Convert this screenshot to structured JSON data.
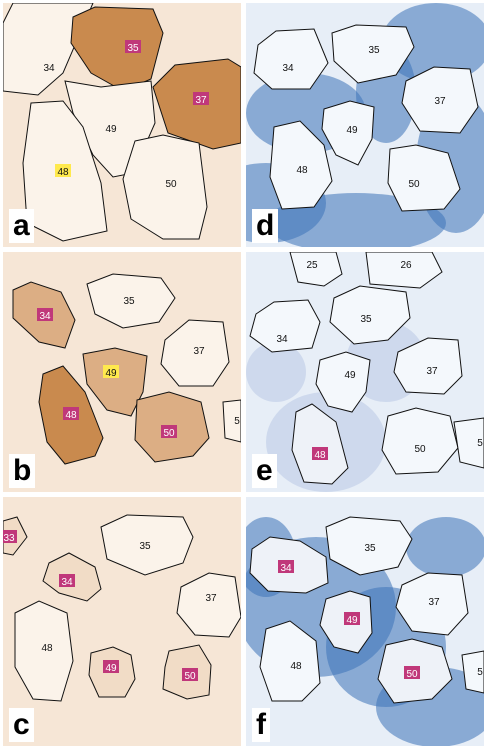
{
  "figure": {
    "colors": {
      "brown_dark": "#c98a4e",
      "brown_mid": "#dcae84",
      "brown_light": "#f1dcc6",
      "cell_pale": "#fbf3ea",
      "blue_dark": "#3c73b8",
      "blue_light": "#d9e6f3",
      "label_magenta": "#c0387a",
      "label_yellow": "#ffe94d"
    },
    "panels": [
      {
        "letter": "a",
        "stain": "brown",
        "cells": [
          {
            "label": "34",
            "tag": "plain",
            "fill": "pale"
          },
          {
            "label": "35",
            "tag": "magenta",
            "fill": "dark"
          },
          {
            "label": "37",
            "tag": "magenta",
            "fill": "dark"
          },
          {
            "label": "49",
            "tag": "plain",
            "fill": "pale"
          },
          {
            "label": "48",
            "tag": "yellow",
            "fill": "pale"
          },
          {
            "label": "50",
            "tag": "plain",
            "fill": "pale"
          }
        ]
      },
      {
        "letter": "b",
        "stain": "brown",
        "cells": [
          {
            "label": "34",
            "tag": "magenta",
            "fill": "mid"
          },
          {
            "label": "35",
            "tag": "plain",
            "fill": "pale"
          },
          {
            "label": "37",
            "tag": "plain",
            "fill": "pale"
          },
          {
            "label": "49",
            "tag": "yellow",
            "fill": "mid"
          },
          {
            "label": "48",
            "tag": "magenta",
            "fill": "dark"
          },
          {
            "label": "50",
            "tag": "magenta",
            "fill": "mid"
          },
          {
            "label": "5",
            "tag": "plain",
            "fill": "pale"
          }
        ]
      },
      {
        "letter": "c",
        "stain": "brown",
        "cells": [
          {
            "label": "33",
            "tag": "magenta",
            "fill": "light"
          },
          {
            "label": "34",
            "tag": "magenta",
            "fill": "light"
          },
          {
            "label": "35",
            "tag": "plain",
            "fill": "pale"
          },
          {
            "label": "37",
            "tag": "plain",
            "fill": "pale"
          },
          {
            "label": "48",
            "tag": "plain",
            "fill": "pale"
          },
          {
            "label": "49",
            "tag": "magenta",
            "fill": "light"
          },
          {
            "label": "50",
            "tag": "magenta",
            "fill": "light"
          }
        ]
      },
      {
        "letter": "d",
        "stain": "blue",
        "cells": [
          {
            "label": "34",
            "tag": "plain",
            "fill": "pale"
          },
          {
            "label": "35",
            "tag": "plain",
            "fill": "pale"
          },
          {
            "label": "37",
            "tag": "plain",
            "fill": "pale"
          },
          {
            "label": "49",
            "tag": "plain",
            "fill": "pale"
          },
          {
            "label": "48",
            "tag": "plain",
            "fill": "pale"
          },
          {
            "label": "50",
            "tag": "plain",
            "fill": "pale"
          }
        ]
      },
      {
        "letter": "e",
        "stain": "blue",
        "cells": [
          {
            "label": "25",
            "tag": "plain",
            "fill": "pale"
          },
          {
            "label": "26",
            "tag": "plain",
            "fill": "pale"
          },
          {
            "label": "34",
            "tag": "plain",
            "fill": "pale"
          },
          {
            "label": "35",
            "tag": "plain",
            "fill": "pale"
          },
          {
            "label": "37",
            "tag": "plain",
            "fill": "pale"
          },
          {
            "label": "49",
            "tag": "plain",
            "fill": "pale"
          },
          {
            "label": "48",
            "tag": "magenta",
            "fill": "light"
          },
          {
            "label": "50",
            "tag": "plain",
            "fill": "pale"
          },
          {
            "label": "5",
            "tag": "plain",
            "fill": "pale"
          }
        ]
      },
      {
        "letter": "f",
        "stain": "blue",
        "cells": [
          {
            "label": "34",
            "tag": "magenta",
            "fill": "light"
          },
          {
            "label": "35",
            "tag": "plain",
            "fill": "pale"
          },
          {
            "label": "37",
            "tag": "plain",
            "fill": "pale"
          },
          {
            "label": "49",
            "tag": "magenta",
            "fill": "light"
          },
          {
            "label": "48",
            "tag": "plain",
            "fill": "pale"
          },
          {
            "label": "50",
            "tag": "magenta",
            "fill": "light"
          },
          {
            "label": "5",
            "tag": "plain",
            "fill": "pale"
          }
        ]
      }
    ]
  }
}
